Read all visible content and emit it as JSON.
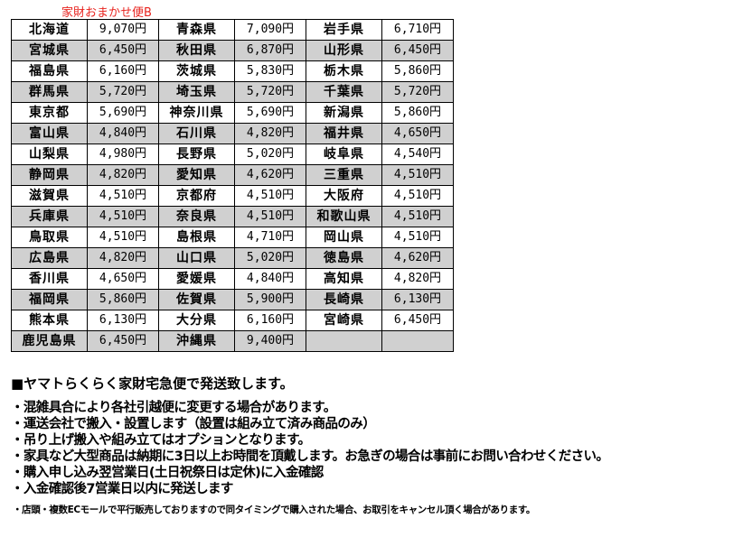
{
  "title": "家財おまかせ便B",
  "rows": [
    [
      [
        "北海道",
        "9,070円"
      ],
      [
        "青森県",
        "7,090円"
      ],
      [
        "岩手県",
        "6,710円"
      ]
    ],
    [
      [
        "宮城県",
        "6,450円"
      ],
      [
        "秋田県",
        "6,870円"
      ],
      [
        "山形県",
        "6,450円"
      ]
    ],
    [
      [
        "福島県",
        "6,160円"
      ],
      [
        "茨城県",
        "5,830円"
      ],
      [
        "栃木県",
        "5,860円"
      ]
    ],
    [
      [
        "群馬県",
        "5,720円"
      ],
      [
        "埼玉県",
        "5,720円"
      ],
      [
        "千葉県",
        "5,720円"
      ]
    ],
    [
      [
        "東京都",
        "5,690円"
      ],
      [
        "神奈川県",
        "5,690円"
      ],
      [
        "新潟県",
        "5,860円"
      ]
    ],
    [
      [
        "富山県",
        "4,840円"
      ],
      [
        "石川県",
        "4,820円"
      ],
      [
        "福井県",
        "4,650円"
      ]
    ],
    [
      [
        "山梨県",
        "4,980円"
      ],
      [
        "長野県",
        "5,020円"
      ],
      [
        "岐阜県",
        "4,540円"
      ]
    ],
    [
      [
        "静岡県",
        "4,820円"
      ],
      [
        "愛知県",
        "4,620円"
      ],
      [
        "三重県",
        "4,510円"
      ]
    ],
    [
      [
        "滋賀県",
        "4,510円"
      ],
      [
        "京都府",
        "4,510円"
      ],
      [
        "大阪府",
        "4,510円"
      ]
    ],
    [
      [
        "兵庫県",
        "4,510円"
      ],
      [
        "奈良県",
        "4,510円"
      ],
      [
        "和歌山県",
        "4,510円"
      ]
    ],
    [
      [
        "鳥取県",
        "4,510円"
      ],
      [
        "島根県",
        "4,710円"
      ],
      [
        "岡山県",
        "4,510円"
      ]
    ],
    [
      [
        "広島県",
        "4,820円"
      ],
      [
        "山口県",
        "5,020円"
      ],
      [
        "徳島県",
        "4,620円"
      ]
    ],
    [
      [
        "香川県",
        "4,650円"
      ],
      [
        "愛媛県",
        "4,840円"
      ],
      [
        "高知県",
        "4,820円"
      ]
    ],
    [
      [
        "福岡県",
        "5,860円"
      ],
      [
        "佐賀県",
        "5,900円"
      ],
      [
        "長崎県",
        "6,130円"
      ]
    ],
    [
      [
        "熊本県",
        "6,130円"
      ],
      [
        "大分県",
        "6,160円"
      ],
      [
        "宮崎県",
        "6,450円"
      ]
    ],
    [
      [
        "鹿児島県",
        "6,450円"
      ],
      [
        "沖縄県",
        "9,400円"
      ],
      [
        "",
        ""
      ]
    ]
  ],
  "notes": {
    "heading": "■ヤマトらくらく家財宅急便で発送致します。",
    "bullets": [
      "・混雑具合により各社引越便に変更する場合があります。",
      "・運送会社で搬入・設置します（設置は組み立て済み商品のみ）",
      "・吊り上げ搬入や組み立てはオプションとなります。",
      "・家具など大型商品は納期に3日以上お時間を頂戴します。お急ぎの場合は事前にお問い合わせください。",
      "・購入申し込み翌営業日(土日祝祭日は定休)に入金確認",
      "・入金確認後7営業日以内に発送します"
    ],
    "small": "・店頭・複数ECモールで平行販売しておりますので同タイミングで購入された場合、お取引をキャンセル頂く場合があります。"
  },
  "colors": {
    "title": "#e8231e",
    "alt_row": "#d0d0d0"
  }
}
